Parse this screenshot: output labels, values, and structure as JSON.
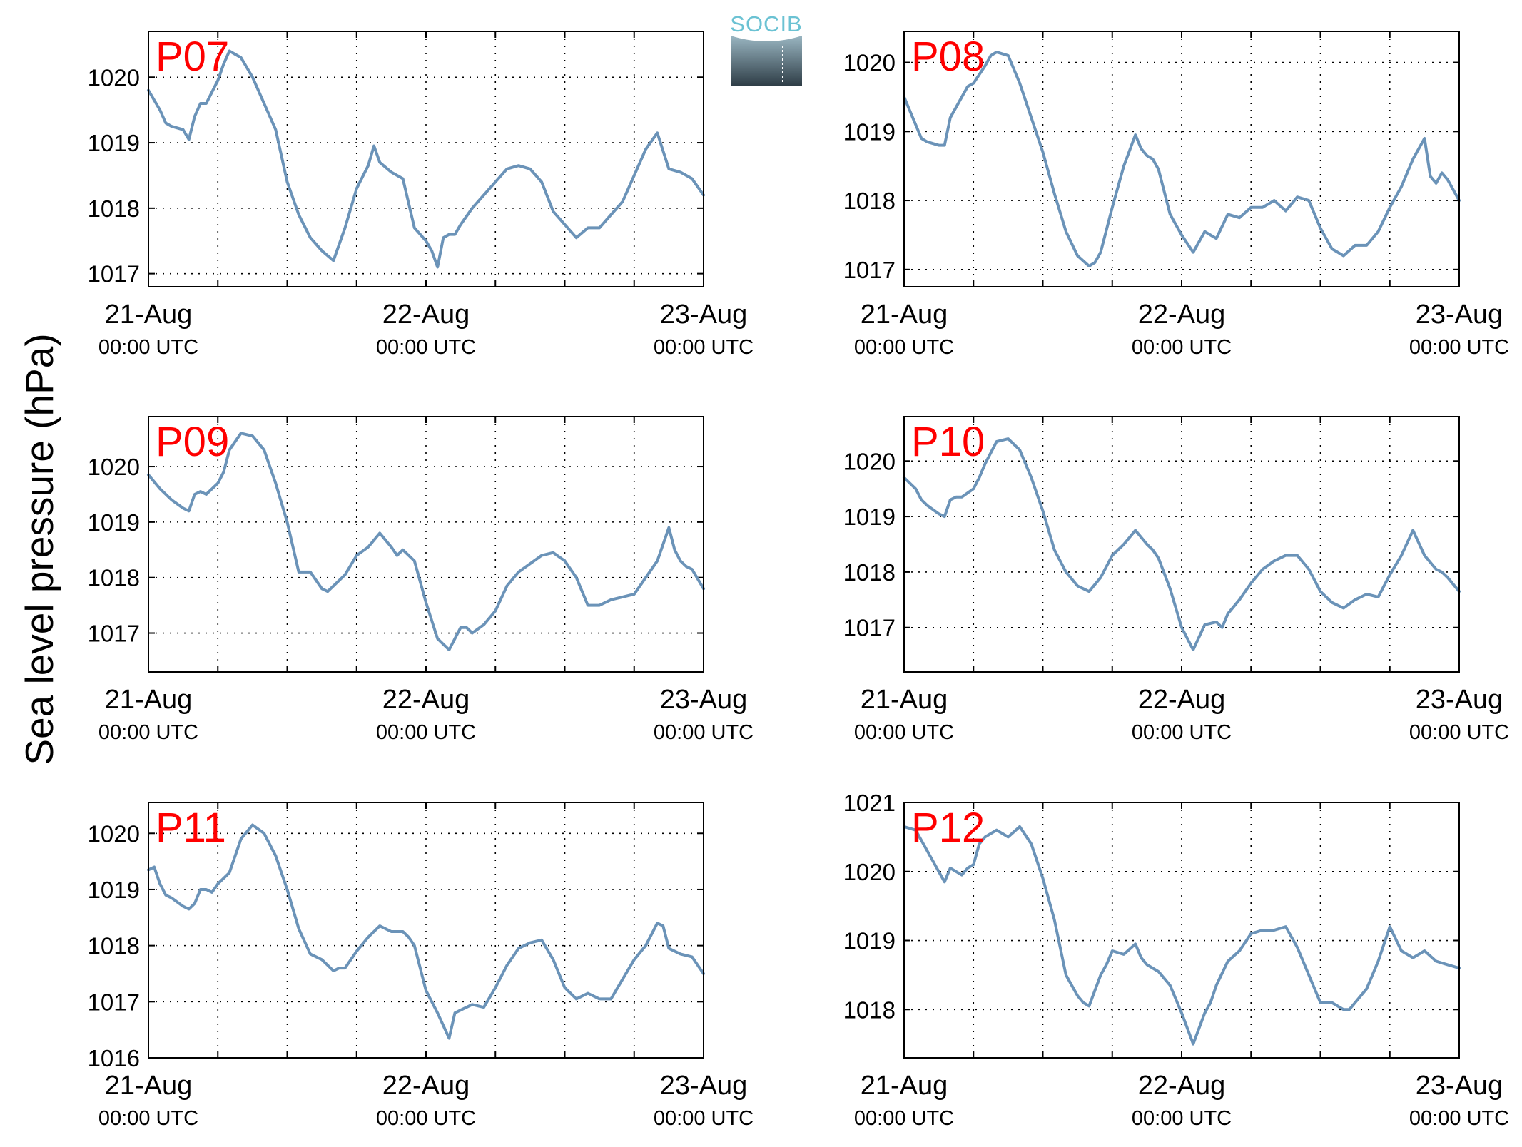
{
  "figure": {
    "ylabel": "Sea level pressure (hPa)",
    "logo_text": "SOCIB",
    "line_color": "#6b93b8",
    "tag_color": "#ff0000",
    "date_ticks": [
      {
        "date": "21-Aug",
        "time": "00:00 UTC"
      },
      {
        "date": "22-Aug",
        "time": "00:00 UTC"
      },
      {
        "date": "23-Aug",
        "time": "00:00 UTC"
      }
    ]
  },
  "chart_data": [
    {
      "type": "line",
      "name": "P07",
      "xlim": [
        0,
        48
      ],
      "ylim": [
        1016.8,
        1020.7
      ],
      "yticks": [
        1017,
        1018,
        1019,
        1020
      ],
      "grid": true,
      "x": [
        0,
        1,
        1.5,
        2,
        3,
        3.5,
        4,
        4.5,
        5,
        6,
        6.5,
        7,
        7.5,
        8,
        9,
        10,
        11,
        12,
        13,
        14,
        15,
        16,
        17,
        18,
        19,
        19.5,
        20,
        21,
        22,
        23,
        24,
        24.5,
        25,
        25.5,
        26,
        26.5,
        27,
        28,
        29,
        30,
        31,
        32,
        33,
        34,
        35,
        36,
        37,
        38,
        39,
        40,
        41,
        42,
        43,
        44,
        45,
        46,
        46.5,
        47,
        48
      ],
      "y": [
        1019.8,
        1019.5,
        1019.3,
        1019.25,
        1019.2,
        1019.05,
        1019.4,
        1019.6,
        1019.6,
        1019.95,
        1020.2,
        1020.4,
        1020.35,
        1020.3,
        1020.0,
        1019.6,
        1019.2,
        1018.4,
        1017.9,
        1017.55,
        1017.35,
        1017.2,
        1017.7,
        1018.3,
        1018.65,
        1018.95,
        1018.7,
        1018.55,
        1018.45,
        1017.7,
        1017.5,
        1017.35,
        1017.1,
        1017.55,
        1017.6,
        1017.6,
        1017.75,
        1018.0,
        1018.2,
        1018.4,
        1018.6,
        1018.65,
        1018.6,
        1018.4,
        1017.95,
        1017.75,
        1017.55,
        1017.7,
        1017.7,
        1017.9,
        1018.1,
        1018.5,
        1018.9,
        1019.15,
        1018.6,
        1018.55,
        1018.5,
        1018.45,
        1018.2
      ]
    },
    {
      "type": "line",
      "name": "P08",
      "xlim": [
        0,
        48
      ],
      "ylim": [
        1016.75,
        1020.45
      ],
      "yticks": [
        1017,
        1018,
        1019,
        1020
      ],
      "grid": true,
      "x": [
        0,
        1,
        1.5,
        2,
        3,
        3.5,
        4,
        5,
        5.5,
        6,
        7,
        7.5,
        8,
        9,
        10,
        11,
        12,
        13,
        14,
        15,
        16,
        16.5,
        17,
        18,
        19,
        20,
        20.5,
        21,
        21.5,
        22,
        23,
        24,
        25,
        26,
        27,
        28,
        29,
        30,
        31,
        32,
        33,
        34,
        35,
        36,
        37,
        38,
        39,
        40,
        41,
        42,
        43,
        44,
        45,
        45.5,
        46,
        46.5,
        47,
        48
      ],
      "y": [
        1019.5,
        1019.1,
        1018.9,
        1018.85,
        1018.8,
        1018.8,
        1019.2,
        1019.5,
        1019.65,
        1019.7,
        1019.95,
        1020.1,
        1020.15,
        1020.1,
        1019.7,
        1019.2,
        1018.7,
        1018.1,
        1017.55,
        1017.2,
        1017.05,
        1017.1,
        1017.25,
        1017.9,
        1018.5,
        1018.95,
        1018.75,
        1018.65,
        1018.6,
        1018.45,
        1017.8,
        1017.5,
        1017.25,
        1017.55,
        1017.45,
        1017.8,
        1017.75,
        1017.9,
        1017.9,
        1018.0,
        1017.85,
        1018.05,
        1018.0,
        1017.6,
        1017.3,
        1017.2,
        1017.35,
        1017.35,
        1017.55,
        1017.9,
        1018.2,
        1018.6,
        1018.9,
        1018.35,
        1018.25,
        1018.4,
        1018.3,
        1018.0
      ]
    },
    {
      "type": "line",
      "name": "P09",
      "xlim": [
        0,
        48
      ],
      "ylim": [
        1016.3,
        1020.9
      ],
      "yticks": [
        1017,
        1018,
        1019,
        1020
      ],
      "grid": true,
      "x": [
        0,
        1,
        2,
        3,
        3.5,
        4,
        4.5,
        5,
        6,
        6.5,
        7,
        8,
        9,
        10,
        11,
        12,
        13,
        14,
        15,
        15.5,
        16,
        17,
        18,
        19,
        20,
        21,
        21.5,
        22,
        23,
        24,
        25,
        26,
        27,
        27.5,
        28,
        29,
        30,
        31,
        32,
        33,
        34,
        35,
        36,
        37,
        38,
        39,
        40,
        41,
        42,
        43,
        44,
        45,
        45.5,
        46,
        46.5,
        47,
        48
      ],
      "y": [
        1019.85,
        1019.6,
        1019.4,
        1019.25,
        1019.2,
        1019.5,
        1019.55,
        1019.5,
        1019.7,
        1019.9,
        1020.3,
        1020.6,
        1020.55,
        1020.3,
        1019.7,
        1019.0,
        1018.1,
        1018.1,
        1017.8,
        1017.75,
        1017.85,
        1018.05,
        1018.4,
        1018.55,
        1018.8,
        1018.55,
        1018.4,
        1018.5,
        1018.3,
        1017.55,
        1016.9,
        1016.7,
        1017.1,
        1017.1,
        1017.0,
        1017.15,
        1017.4,
        1017.85,
        1018.1,
        1018.25,
        1018.4,
        1018.45,
        1018.3,
        1018.0,
        1017.5,
        1017.5,
        1017.6,
        1017.65,
        1017.7,
        1018.0,
        1018.3,
        1018.9,
        1018.5,
        1018.3,
        1018.2,
        1018.15,
        1017.8
      ]
    },
    {
      "type": "line",
      "name": "P10",
      "xlim": [
        0,
        48
      ],
      "ylim": [
        1016.2,
        1020.8
      ],
      "yticks": [
        1017,
        1018,
        1019,
        1020
      ],
      "grid": true,
      "x": [
        0,
        1,
        1.5,
        2,
        3,
        3.5,
        4,
        4.5,
        5,
        6,
        6.5,
        7,
        8,
        9,
        10,
        11,
        12,
        13,
        14,
        15,
        15.5,
        16,
        17,
        18,
        19,
        20,
        21,
        21.5,
        22,
        23,
        24,
        25,
        26,
        27,
        27.5,
        28,
        29,
        30,
        31,
        32,
        33,
        34,
        35,
        36,
        37,
        38,
        39,
        40,
        41,
        42,
        43,
        44,
        45,
        46,
        46.5,
        47,
        48
      ],
      "y": [
        1019.7,
        1019.5,
        1019.3,
        1019.2,
        1019.05,
        1019.0,
        1019.3,
        1019.35,
        1019.35,
        1019.5,
        1019.7,
        1019.95,
        1020.35,
        1020.4,
        1020.2,
        1019.7,
        1019.1,
        1018.4,
        1018.0,
        1017.75,
        1017.7,
        1017.65,
        1017.9,
        1018.3,
        1018.5,
        1018.75,
        1018.5,
        1018.4,
        1018.25,
        1017.7,
        1017.0,
        1016.6,
        1017.05,
        1017.1,
        1017.0,
        1017.25,
        1017.5,
        1017.8,
        1018.05,
        1018.2,
        1018.3,
        1018.3,
        1018.05,
        1017.65,
        1017.45,
        1017.35,
        1017.5,
        1017.6,
        1017.55,
        1017.95,
        1018.3,
        1018.75,
        1018.3,
        1018.05,
        1018.0,
        1017.9,
        1017.65
      ]
    },
    {
      "type": "line",
      "name": "P11",
      "xlim": [
        0,
        48
      ],
      "ylim": [
        1016,
        1020.55
      ],
      "yticks": [
        1016,
        1017,
        1018,
        1019,
        1020
      ],
      "grid": true,
      "x": [
        0,
        0.5,
        1,
        1.5,
        2,
        3,
        3.5,
        4,
        4.5,
        5,
        5.5,
        6,
        7,
        8,
        9,
        10,
        11,
        12,
        13,
        14,
        15,
        16,
        16.5,
        17,
        18,
        19,
        20,
        21,
        22,
        22.5,
        23,
        24,
        25,
        26,
        26.5,
        27,
        28,
        29,
        30,
        31,
        32,
        33,
        34,
        35,
        36,
        37,
        38,
        39,
        40,
        41,
        42,
        43,
        44,
        44.5,
        45,
        46,
        47,
        48
      ],
      "y": [
        1019.35,
        1019.4,
        1019.1,
        1018.9,
        1018.85,
        1018.7,
        1018.65,
        1018.75,
        1019.0,
        1019.0,
        1018.95,
        1019.1,
        1019.3,
        1019.9,
        1020.15,
        1020.0,
        1019.6,
        1019.0,
        1018.3,
        1017.85,
        1017.75,
        1017.55,
        1017.6,
        1017.6,
        1017.9,
        1018.15,
        1018.35,
        1018.25,
        1018.25,
        1018.15,
        1018.0,
        1017.2,
        1016.8,
        1016.35,
        1016.8,
        1016.85,
        1016.95,
        1016.9,
        1017.25,
        1017.65,
        1017.95,
        1018.05,
        1018.1,
        1017.75,
        1017.25,
        1017.05,
        1017.15,
        1017.05,
        1017.05,
        1017.4,
        1017.75,
        1018.0,
        1018.4,
        1018.35,
        1017.95,
        1017.85,
        1017.8,
        1017.5
      ]
    },
    {
      "type": "line",
      "name": "P12",
      "xlim": [
        0,
        48
      ],
      "ylim": [
        1017.3,
        1021
      ],
      "yticks": [
        1018,
        1019,
        1020,
        1021
      ],
      "grid": true,
      "x": [
        0,
        1,
        2,
        3,
        3.5,
        4,
        4.5,
        5,
        5.5,
        6,
        6.5,
        7,
        8,
        9,
        10,
        11,
        12,
        13,
        14,
        15,
        15.5,
        16,
        17,
        17.5,
        18,
        19,
        20,
        20.5,
        21,
        22,
        22.5,
        23,
        24,
        25,
        26,
        26.5,
        27,
        28,
        29,
        30,
        31,
        32,
        33,
        34,
        35,
        36,
        37,
        38,
        38.5,
        39,
        40,
        41,
        42,
        43,
        44,
        45,
        46,
        47,
        48
      ],
      "y": [
        1020.65,
        1020.6,
        1020.3,
        1020.0,
        1019.85,
        1020.05,
        1020.0,
        1019.95,
        1020.05,
        1020.1,
        1020.4,
        1020.5,
        1020.6,
        1020.5,
        1020.65,
        1020.4,
        1019.9,
        1019.3,
        1018.5,
        1018.2,
        1018.1,
        1018.05,
        1018.5,
        1018.65,
        1018.85,
        1018.8,
        1018.95,
        1018.75,
        1018.65,
        1018.55,
        1018.45,
        1018.35,
        1017.95,
        1017.5,
        1017.95,
        1018.1,
        1018.35,
        1018.7,
        1018.85,
        1019.1,
        1019.15,
        1019.15,
        1019.2,
        1018.9,
        1018.5,
        1018.1,
        1018.1,
        1018.0,
        1018.0,
        1018.1,
        1018.3,
        1018.7,
        1019.2,
        1018.85,
        1018.75,
        1018.85,
        1018.7,
        1018.65,
        1018.6
      ]
    }
  ]
}
